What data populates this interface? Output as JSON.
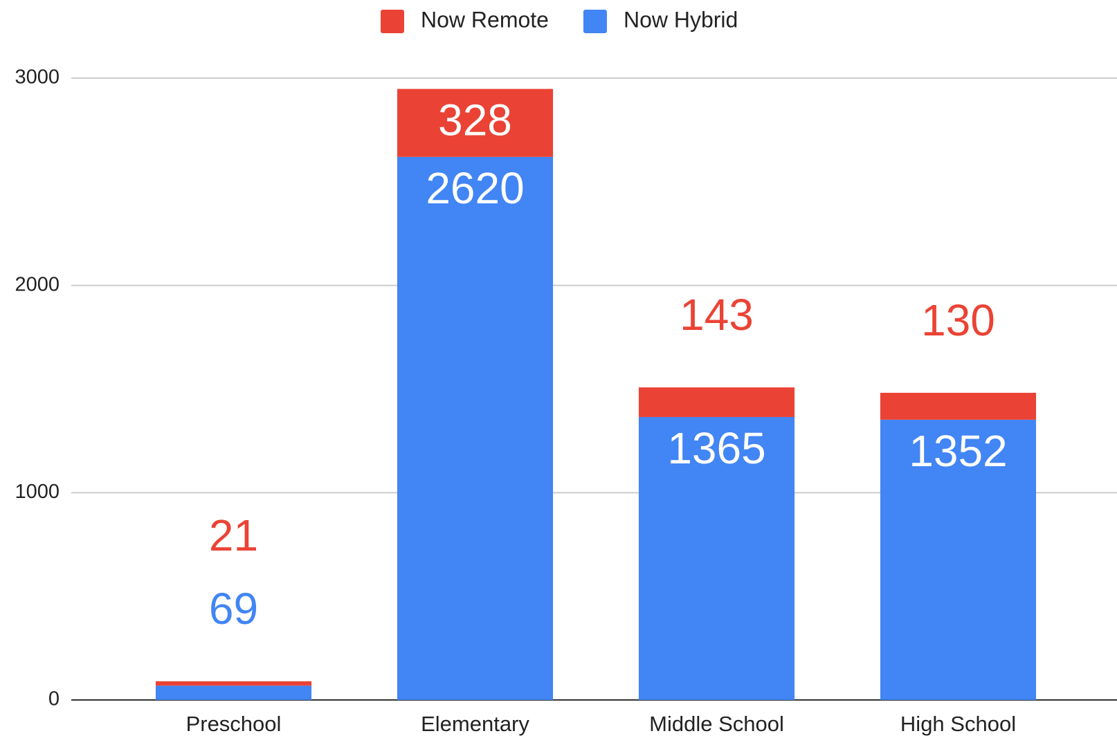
{
  "chart_data": {
    "type": "stacked_bar",
    "categories": [
      "Preschool",
      "Elementary",
      "Middle School",
      "High School"
    ],
    "series": [
      {
        "name": "Now Hybrid",
        "color": "#4285f4",
        "values": [
          69,
          2620,
          1365,
          1352
        ]
      },
      {
        "name": "Now Remote",
        "color": "#ea4335",
        "values": [
          21,
          328,
          143,
          130
        ]
      }
    ],
    "ylim": [
      0,
      3000
    ],
    "yticks": [
      0,
      1000,
      2000,
      3000
    ],
    "grid": true,
    "legend": "top"
  }
}
